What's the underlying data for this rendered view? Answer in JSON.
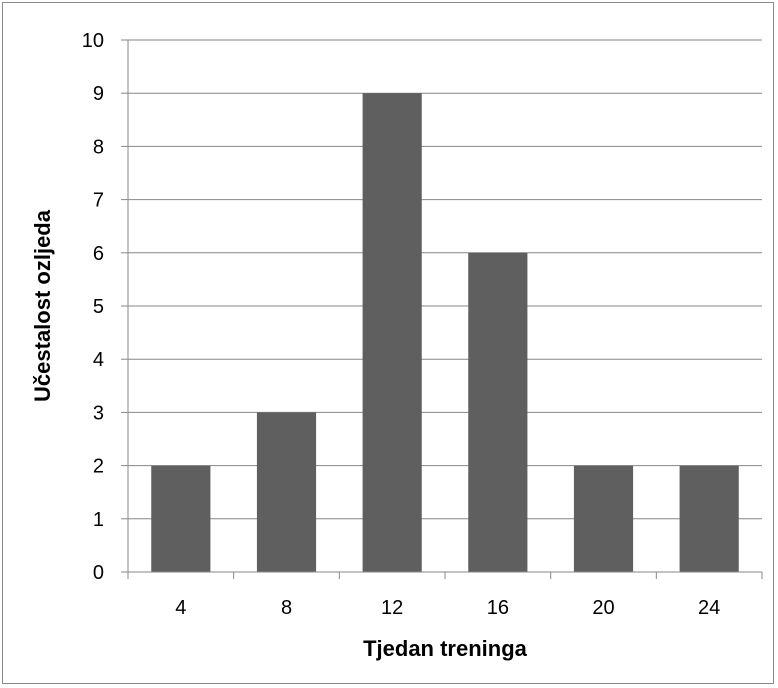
{
  "chart_data": {
    "type": "bar",
    "title": "",
    "xlabel": "Tjedan treninga",
    "ylabel": "Učestalost ozljeda",
    "categories": [
      "4",
      "8",
      "12",
      "16",
      "20",
      "24"
    ],
    "values": [
      2,
      3,
      9,
      6,
      2,
      2
    ],
    "ylim": [
      0,
      10
    ],
    "yticks": [
      "0",
      "1",
      "2",
      "3",
      "4",
      "5",
      "6",
      "7",
      "8",
      "9",
      "10"
    ],
    "grid": true,
    "legend": "none",
    "colors": {
      "bar": "#5f5f5f",
      "grid": "#878787",
      "axis": "#878787",
      "frame": "#8a8a8a"
    }
  }
}
